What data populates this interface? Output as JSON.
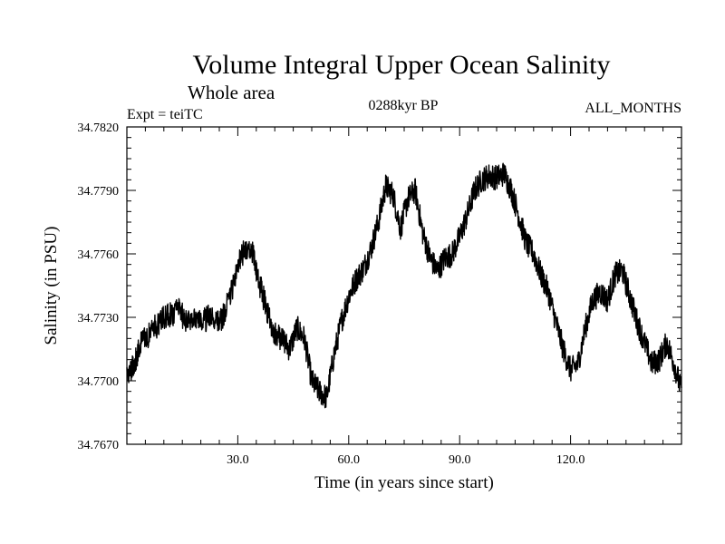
{
  "chart_data": {
    "type": "line",
    "title": "Volume Integral Upper Ocean Salinity",
    "subtitle": "Whole area",
    "experiment": "Expt = teiTC",
    "period": "0288kyr BP",
    "months": "ALL_MONTHS",
    "xlabel": "Time (in years since start)",
    "ylabel": "Salinity (in PSU)",
    "xlim": [
      0,
      150
    ],
    "ylim": [
      34.767,
      34.782
    ],
    "xticks": [
      30,
      60,
      90,
      120
    ],
    "xtick_labels": [
      "30.0",
      "60.0",
      "90.0",
      "120.0"
    ],
    "yticks": [
      34.767,
      34.77,
      34.773,
      34.776,
      34.779,
      34.782
    ],
    "ytick_labels": [
      "34.7670",
      "34.7700",
      "34.7730",
      "34.7760",
      "34.7790",
      "34.7820"
    ],
    "grid": false,
    "series": [
      {
        "name": "Salinity",
        "color": "#000000",
        "x": [
          0,
          2,
          4,
          6,
          8,
          10,
          12,
          14,
          16,
          18,
          20,
          22,
          24,
          26,
          28,
          30,
          32,
          34,
          36,
          38,
          40,
          42,
          44,
          46,
          48,
          50,
          52,
          54,
          56,
          58,
          60,
          62,
          64,
          66,
          68,
          70,
          72,
          74,
          76,
          78,
          80,
          82,
          84,
          86,
          88,
          90,
          92,
          94,
          96,
          98,
          100,
          102,
          104,
          106,
          108,
          110,
          112,
          114,
          116,
          118,
          120,
          122,
          124,
          126,
          128,
          130,
          132,
          134,
          136,
          138,
          140,
          142,
          144,
          146,
          148,
          150
        ],
        "values": [
          34.7702,
          34.7708,
          34.7718,
          34.7722,
          34.7726,
          34.773,
          34.7731,
          34.7734,
          34.7728,
          34.7731,
          34.7727,
          34.773,
          34.7728,
          34.773,
          34.774,
          34.7755,
          34.7762,
          34.776,
          34.7745,
          34.7733,
          34.7722,
          34.772,
          34.7715,
          34.7725,
          34.772,
          34.77,
          34.7695,
          34.7692,
          34.7712,
          34.7728,
          34.774,
          34.7748,
          34.7753,
          34.7762,
          34.7775,
          34.7792,
          34.7788,
          34.7772,
          34.7786,
          34.779,
          34.777,
          34.7758,
          34.7752,
          34.7758,
          34.776,
          34.7768,
          34.7778,
          34.779,
          34.7795,
          34.7797,
          34.7796,
          34.7798,
          34.779,
          34.7778,
          34.7765,
          34.776,
          34.775,
          34.7742,
          34.7728,
          34.7715,
          34.7705,
          34.7708,
          34.7725,
          34.7738,
          34.7742,
          34.7738,
          34.775,
          34.7752,
          34.774,
          34.7728,
          34.7718,
          34.7708,
          34.771,
          34.7718,
          34.7708,
          34.7695
        ],
        "noise_amplitude": 0.0006
      }
    ]
  }
}
